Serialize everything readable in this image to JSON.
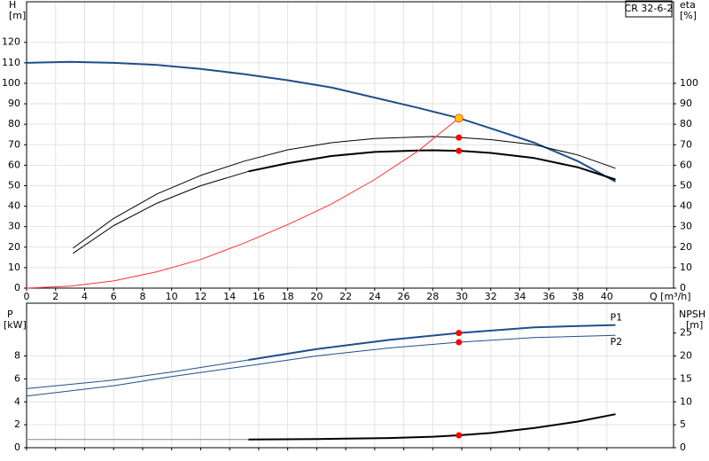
{
  "chart_data": [
    {
      "type": "line",
      "title": "CR 32-6-2",
      "ylabel": [
        "H",
        "[m]"
      ],
      "y2label": [
        "eta",
        "[%]"
      ],
      "xlabel": "Q [m³/h]",
      "xlim": [
        0,
        44.6
      ],
      "xticks": [
        0,
        2,
        4,
        6,
        8,
        10,
        12,
        14,
        16,
        18,
        20,
        22,
        24,
        26,
        28,
        30,
        32,
        34,
        36,
        38,
        40
      ],
      "ylim": [
        0,
        139.8
      ],
      "yticks": [
        0,
        10,
        20,
        30,
        40,
        50,
        60,
        70,
        80,
        90,
        100,
        110,
        120
      ],
      "y2lim": [
        0,
        139.8
      ],
      "y2ticks": [
        0,
        10,
        20,
        30,
        40,
        50,
        60,
        70,
        80,
        90,
        100
      ],
      "grid": true,
      "series": [
        {
          "color": "#1f4e8c",
          "width": 2,
          "x": [
            0,
            3,
            6,
            9,
            12,
            15,
            18,
            21,
            24,
            27,
            29.8,
            32,
            35,
            38,
            40.6
          ],
          "values": [
            110,
            110.5,
            110,
            109,
            107,
            104.5,
            101.5,
            98,
            93,
            88,
            83,
            78,
            71,
            62,
            52
          ]
        },
        {
          "color": "#000000",
          "width": 1,
          "axis": "y2",
          "x": [
            3.2,
            6,
            9,
            12,
            15,
            18,
            21,
            24,
            27,
            28,
            30,
            32,
            35,
            38,
            40.6
          ],
          "values": [
            19.5,
            34,
            46,
            55,
            62,
            67.5,
            71,
            73,
            73.8,
            74,
            73.5,
            72.5,
            70,
            65,
            58.5
          ]
        },
        {
          "color": "#000000",
          "width": 1,
          "axis": "y2",
          "x": [
            3.2,
            6,
            9,
            12,
            15.3
          ],
          "values": [
            17,
            30.5,
            41.5,
            50,
            57
          ]
        },
        {
          "color": "#000000",
          "width": 2,
          "axis": "y2",
          "x": [
            15.3,
            18,
            21,
            24,
            27,
            28,
            30,
            32,
            35,
            38,
            40.6
          ],
          "values": [
            57,
            61,
            64.5,
            66.5,
            67.2,
            67.3,
            67,
            66,
            63.5,
            59,
            53
          ]
        },
        {
          "color": "#ff3030",
          "width": 1,
          "x": [
            0,
            3,
            6,
            9,
            12,
            15,
            18,
            21,
            24,
            27,
            29.8
          ],
          "values": [
            0,
            1,
            3.5,
            8,
            14,
            22,
            31,
            41,
            53,
            67,
            83
          ]
        },
        {
          "color": "#ffcc00",
          "marker": true,
          "x": [
            29.8
          ],
          "values": [
            83
          ]
        },
        {
          "color": "#ff0000",
          "marker": true,
          "axis": "y2",
          "x": [
            29.8,
            29.8
          ],
          "values": [
            73.5,
            67
          ]
        }
      ]
    },
    {
      "type": "line",
      "ylabel": [
        "P",
        "[kW]"
      ],
      "y2label": [
        "NPSH",
        "[m]"
      ],
      "xlim": [
        0,
        44.6
      ],
      "xticks": [
        0,
        2,
        4,
        6,
        8,
        10,
        12,
        14,
        16,
        18,
        20,
        22,
        24,
        26,
        28,
        30,
        32,
        34,
        36,
        38,
        40
      ],
      "ylim": [
        0,
        12.6
      ],
      "yticks": [
        0,
        2,
        4,
        6,
        8
      ],
      "y2lim": [
        0,
        31.5
      ],
      "y2ticks": [
        0,
        5,
        10,
        15,
        20,
        25
      ],
      "grid": true,
      "series": [
        {
          "name": "P1",
          "color": "#1f4e8c",
          "width": 1,
          "x": [
            0,
            6,
            10,
            15.3
          ],
          "values": [
            5.15,
            5.9,
            6.6,
            7.65
          ]
        },
        {
          "name": "P1",
          "color": "#1f4e8c",
          "width": 2,
          "x": [
            15.3,
            20,
            25,
            29.8,
            35,
            40.6
          ],
          "values": [
            7.65,
            8.6,
            9.4,
            10,
            10.5,
            10.7
          ]
        },
        {
          "name": "P2",
          "color": "#1f4e8c",
          "width": 1,
          "x": [
            0,
            6,
            10,
            15,
            20,
            25,
            29.8,
            35,
            40.6
          ],
          "values": [
            4.5,
            5.4,
            6.2,
            7.1,
            8,
            8.7,
            9.2,
            9.6,
            9.8
          ]
        },
        {
          "color": "#888888",
          "width": 1,
          "axis": "y2",
          "x": [
            0,
            15.3
          ],
          "values": [
            1.8,
            1.8
          ]
        },
        {
          "color": "#000000",
          "width": 2,
          "axis": "y2",
          "x": [
            15.3,
            20,
            25,
            28,
            29.8,
            32,
            35,
            38,
            40.6
          ],
          "values": [
            1.8,
            1.9,
            2.1,
            2.4,
            2.7,
            3.2,
            4.3,
            5.7,
            7.3
          ]
        },
        {
          "color": "#ff0000",
          "marker": true,
          "x": [
            29.8,
            29.8
          ],
          "values": [
            10,
            9.2
          ]
        },
        {
          "color": "#ff0000",
          "marker": true,
          "axis": "y2",
          "x": [
            29.8
          ],
          "values": [
            2.7
          ]
        }
      ]
    }
  ]
}
